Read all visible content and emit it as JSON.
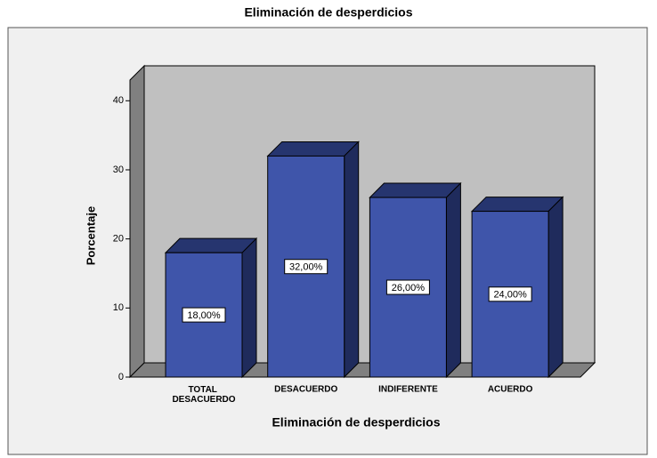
{
  "chart_data": {
    "type": "bar3d",
    "title": "Eliminación de desperdicios",
    "x_label": "Eliminación de desperdicios",
    "y_label": "Porcentaje",
    "categories": [
      "TOTAL DESACUERDO",
      "DESACUERDO",
      "INDIFERENTE",
      "ACUERDO"
    ],
    "values": [
      18,
      32,
      26,
      24
    ],
    "value_labels": [
      "18,00%",
      "32,00%",
      "26,00%",
      "24,00%"
    ],
    "color": "#3f55aa",
    "ylim": [
      0,
      43
    ],
    "yticks": [
      0,
      10,
      20,
      30,
      40
    ]
  }
}
